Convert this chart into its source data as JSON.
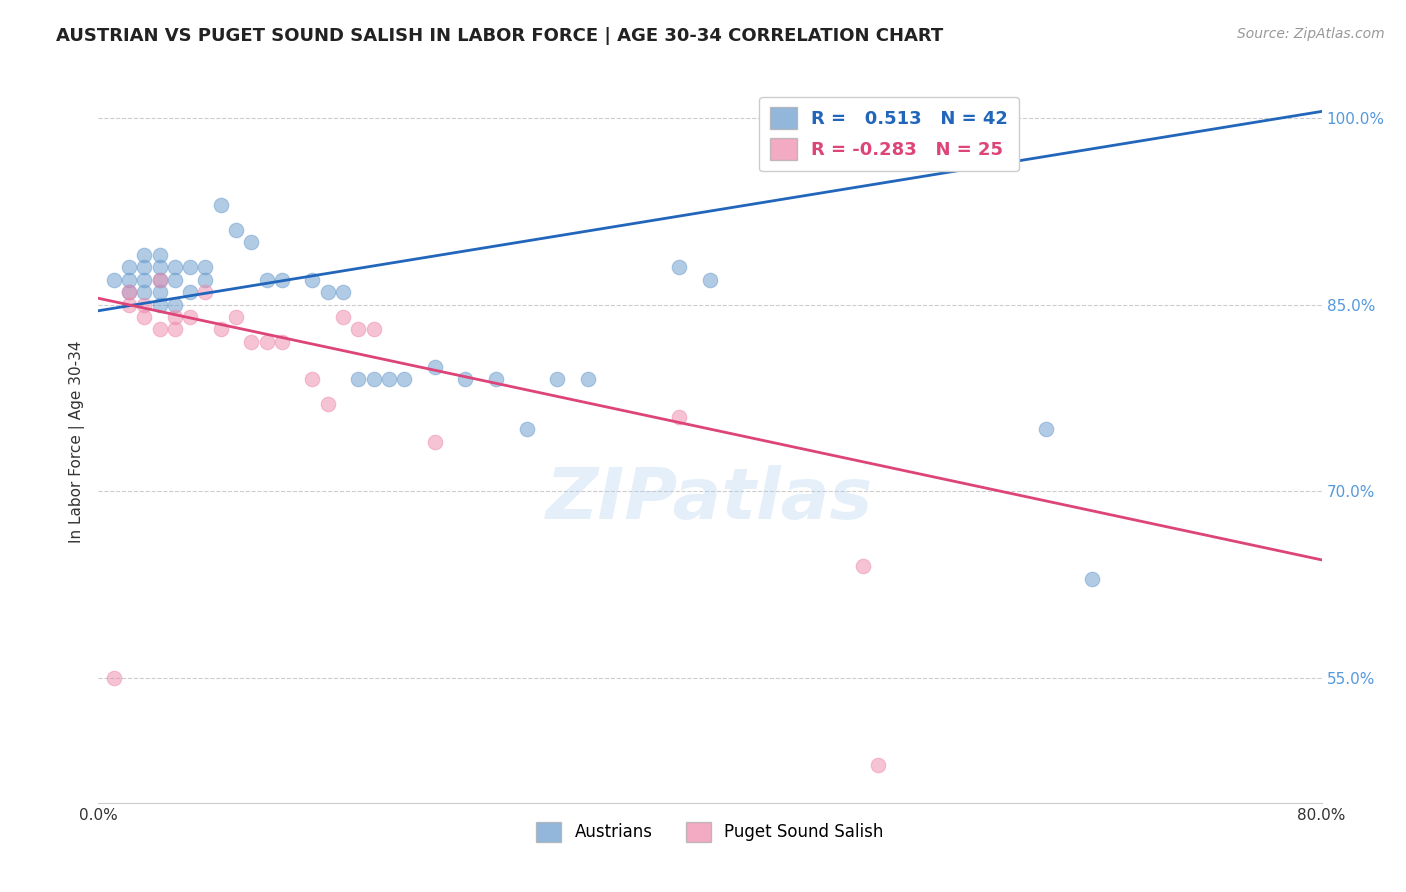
{
  "title": "AUSTRIAN VS PUGET SOUND SALISH IN LABOR FORCE | AGE 30-34 CORRELATION CHART",
  "source_text": "Source: ZipAtlas.com",
  "ylabel": "In Labor Force | Age 30-34",
  "xlabel": "",
  "xlim": [
    0.0,
    0.8
  ],
  "ylim": [
    0.45,
    1.03
  ],
  "xticks": [
    0.0,
    0.2,
    0.4,
    0.6,
    0.8
  ],
  "xticklabels": [
    "0.0%",
    "",
    "",
    "",
    "80.0%"
  ],
  "yticks": [
    0.55,
    0.7,
    0.85,
    1.0
  ],
  "yticklabels": [
    "55.0%",
    "70.0%",
    "85.0%",
    "100.0%"
  ],
  "blue_R": 0.513,
  "blue_N": 42,
  "pink_R": -0.283,
  "pink_N": 25,
  "blue_scatter_x": [
    0.01,
    0.02,
    0.02,
    0.02,
    0.03,
    0.03,
    0.03,
    0.03,
    0.04,
    0.04,
    0.04,
    0.04,
    0.04,
    0.05,
    0.05,
    0.05,
    0.06,
    0.06,
    0.07,
    0.07,
    0.08,
    0.09,
    0.1,
    0.11,
    0.12,
    0.14,
    0.15,
    0.16,
    0.17,
    0.18,
    0.19,
    0.2,
    0.22,
    0.24,
    0.26,
    0.28,
    0.3,
    0.32,
    0.38,
    0.4,
    0.62,
    0.65
  ],
  "blue_scatter_y": [
    0.87,
    0.86,
    0.87,
    0.88,
    0.86,
    0.87,
    0.88,
    0.89,
    0.85,
    0.86,
    0.87,
    0.88,
    0.89,
    0.85,
    0.87,
    0.88,
    0.86,
    0.88,
    0.87,
    0.88,
    0.93,
    0.91,
    0.9,
    0.87,
    0.87,
    0.87,
    0.86,
    0.86,
    0.79,
    0.79,
    0.79,
    0.79,
    0.8,
    0.79,
    0.79,
    0.75,
    0.79,
    0.79,
    0.88,
    0.87,
    0.75,
    0.63
  ],
  "pink_scatter_x": [
    0.01,
    0.02,
    0.02,
    0.03,
    0.03,
    0.04,
    0.04,
    0.05,
    0.05,
    0.06,
    0.07,
    0.08,
    0.09,
    0.1,
    0.11,
    0.12,
    0.14,
    0.15,
    0.16,
    0.17,
    0.18,
    0.22,
    0.38,
    0.5,
    0.51
  ],
  "pink_scatter_y": [
    0.55,
    0.85,
    0.86,
    0.84,
    0.85,
    0.83,
    0.87,
    0.83,
    0.84,
    0.84,
    0.86,
    0.83,
    0.84,
    0.82,
    0.82,
    0.82,
    0.79,
    0.77,
    0.84,
    0.83,
    0.83,
    0.74,
    0.76,
    0.64,
    0.48
  ],
  "blue_color": "#6699cc",
  "pink_color": "#ee88aa",
  "blue_line_color": "#2266bb",
  "pink_line_color": "#dd4477",
  "watermark": "ZIPatlas",
  "background_color": "#ffffff",
  "grid_color": "#cccccc",
  "blue_line_x0": 0.0,
  "blue_line_y0": 0.845,
  "blue_line_x1": 0.8,
  "blue_line_y1": 1.005,
  "pink_line_x0": 0.0,
  "pink_line_y0": 0.855,
  "pink_line_x1": 0.8,
  "pink_line_y1": 0.645
}
